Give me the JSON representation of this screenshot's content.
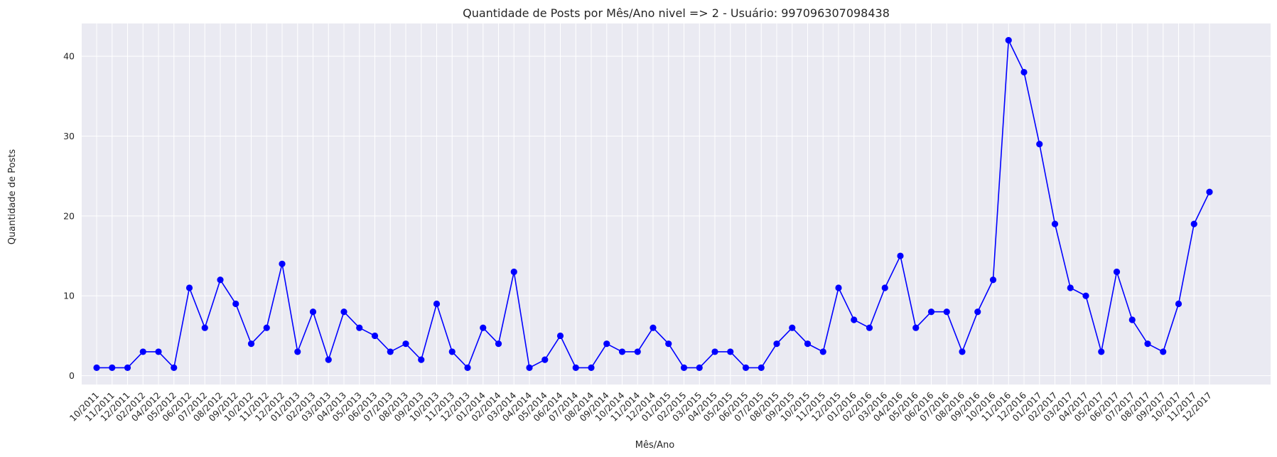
{
  "chart_data": {
    "type": "line",
    "title": "Quantidade de Posts por Mês/Ano nivel => 2 - Usuário: 997096307098438",
    "xlabel": "Mês/Ano",
    "ylabel": "Quantidade de Posts",
    "ylim": [
      -1.1,
      44.1
    ],
    "yticks": [
      0,
      10,
      20,
      30,
      40
    ],
    "grid": true,
    "categories": [
      "10/2011",
      "11/2011",
      "12/2011",
      "02/2012",
      "04/2012",
      "05/2012",
      "06/2012",
      "07/2012",
      "08/2012",
      "09/2012",
      "10/2012",
      "11/2012",
      "12/2012",
      "01/2013",
      "02/2013",
      "03/2013",
      "04/2013",
      "05/2013",
      "06/2013",
      "07/2013",
      "08/2013",
      "09/2013",
      "10/2013",
      "11/2013",
      "12/2013",
      "01/2014",
      "02/2014",
      "03/2014",
      "04/2014",
      "05/2014",
      "06/2014",
      "07/2014",
      "08/2014",
      "09/2014",
      "10/2014",
      "11/2014",
      "12/2014",
      "01/2015",
      "02/2015",
      "03/2015",
      "04/2015",
      "05/2015",
      "06/2015",
      "07/2015",
      "08/2015",
      "09/2015",
      "10/2015",
      "11/2015",
      "12/2015",
      "01/2016",
      "02/2016",
      "03/2016",
      "04/2016",
      "05/2016",
      "06/2016",
      "07/2016",
      "08/2016",
      "09/2016",
      "10/2016",
      "11/2016",
      "12/2016",
      "01/2017",
      "02/2017",
      "03/2017",
      "04/2017",
      "05/2017",
      "06/2017",
      "07/2017",
      "08/2017",
      "09/2017",
      "10/2017",
      "11/2017",
      "12/2017"
    ],
    "series": [
      {
        "values": [
          1,
          1,
          1,
          3,
          3,
          1,
          11,
          6,
          12,
          9,
          4,
          6,
          14,
          3,
          8,
          2,
          8,
          6,
          5,
          3,
          4,
          2,
          9,
          3,
          1,
          6,
          4,
          13,
          1,
          2,
          5,
          1,
          1,
          4,
          3,
          3,
          6,
          4,
          1,
          1,
          3,
          3,
          1,
          1,
          4,
          6,
          4,
          3,
          11,
          7,
          6,
          11,
          15,
          6,
          8,
          8,
          3,
          8,
          12,
          42,
          38,
          29,
          19,
          11,
          10,
          3,
          13,
          7,
          4,
          3,
          9,
          19,
          23
        ],
        "color": "#0000ff"
      }
    ],
    "colors": {
      "plot_background": "#eaeaf2",
      "grid": "#ffffff",
      "line": "#0000ff",
      "text": "#262626"
    }
  }
}
